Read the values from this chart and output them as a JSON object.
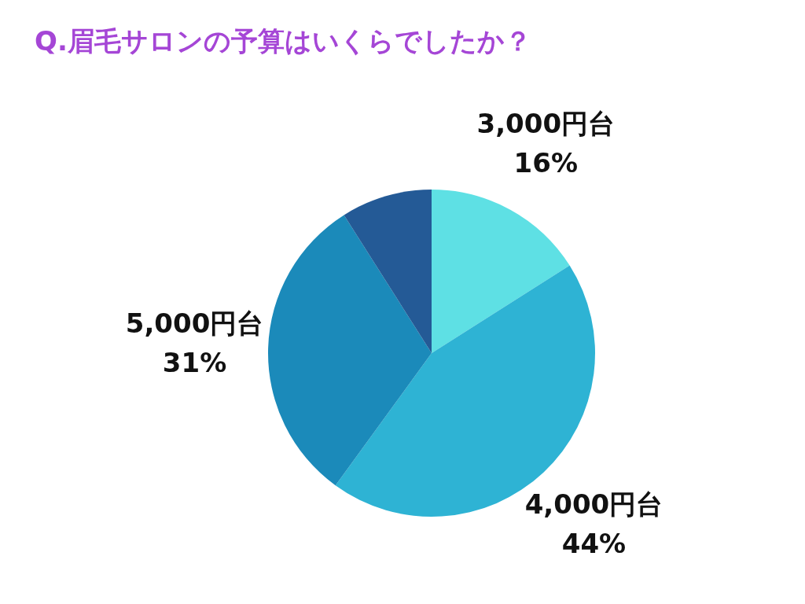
{
  "chart_data": {
    "type": "pie",
    "title": "Q.眉毛サロンの予算はいくらでしたか？",
    "categories": [
      "3,000円台",
      "4,000円台",
      "5,000円台",
      null
    ],
    "values": [
      16,
      44,
      31,
      9
    ],
    "value_labels": [
      "16%",
      "44%",
      "31%",
      null
    ],
    "colors": [
      "#5ee0e4",
      "#2eb3d4",
      "#1b8aba",
      "#245a96"
    ],
    "legend": false
  }
}
